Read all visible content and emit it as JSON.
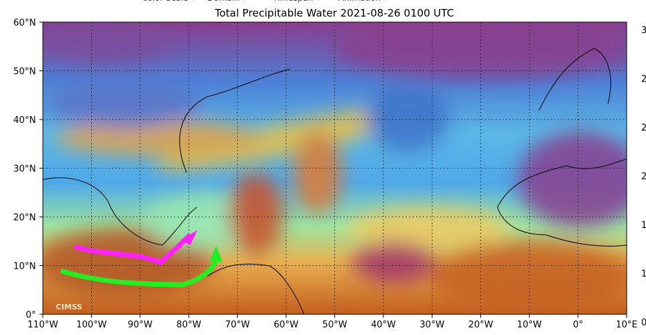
{
  "menu": [
    "Color Scale ▾",
    "Domain ▾",
    "Timespan ▾",
    "Animation ▾"
  ],
  "title": "Total Precipitable Water  2021-08-26 0100 UTC",
  "lat_labels": [
    "60°N",
    "50°N",
    "40°N",
    "30°N",
    "20°N",
    "10°N",
    "0°"
  ],
  "lon_labels": [
    "110°W",
    "100°W",
    "90°W",
    "80°W",
    "70°W",
    "60°W",
    "50°W",
    "40°W",
    "30°W",
    "20°W",
    "10°W",
    "0°",
    "10°E"
  ],
  "colorbar_labels": [
    "3",
    "2",
    "2",
    "2",
    "1",
    "1",
    "0"
  ],
  "logo": "CIMSS"
}
